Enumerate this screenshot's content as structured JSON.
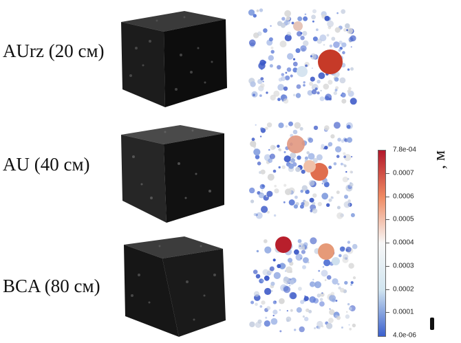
{
  "rows": [
    {
      "label": "AUrz (20 см)"
    },
    {
      "label": "AU (40 см)"
    },
    {
      "label": "BCA (80 см)"
    }
  ],
  "colorbar": {
    "max_label": "7.8e-04",
    "min_label": "4.0e-06",
    "ticks": [
      "0.0007",
      "0.0006",
      "0.0005",
      "0.0004",
      "0.0003",
      "0.0002",
      "0.0001"
    ],
    "colors": [
      "#b2182b",
      "#ef8a62",
      "#f7f7f7",
      "#d1e5f0",
      "#3a5fcd"
    ],
    "unit": ", м"
  }
}
